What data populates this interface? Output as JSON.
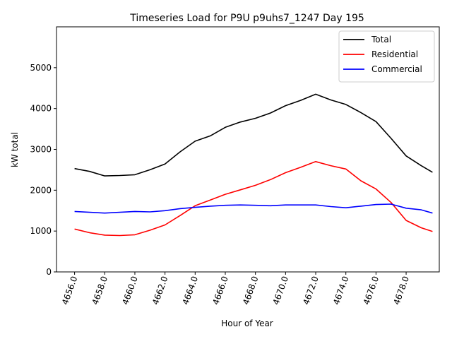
{
  "chart_data": {
    "type": "line",
    "title": "Timeseries Load for P9U p9uhs7_1247  Day 195",
    "xlabel": "Hour of Year",
    "ylabel": "kW total",
    "xlim": [
      4654.8,
      4680.2
    ],
    "ylim": [
      0,
      6000
    ],
    "x_ticks": [
      4656,
      4658,
      4660,
      4662,
      4664,
      4666,
      4668,
      4670,
      4672,
      4674,
      4676,
      4678
    ],
    "x_tick_labels": [
      "4656.0",
      "4658.0",
      "4660.0",
      "4662.0",
      "4664.0",
      "4666.0",
      "4668.0",
      "4670.0",
      "4672.0",
      "4674.0",
      "4676.0",
      "4678.0"
    ],
    "y_ticks": [
      0,
      1000,
      2000,
      3000,
      4000,
      5000
    ],
    "y_tick_labels": [
      "0",
      "1000",
      "2000",
      "3000",
      "4000",
      "5000"
    ],
    "legend_position": "top-right",
    "series": [
      {
        "name": "Total",
        "color": "#000000",
        "x": [
          4656,
          4657,
          4658,
          4659,
          4660,
          4661,
          4662,
          4663,
          4664,
          4665,
          4666,
          4667,
          4668,
          4669,
          4670,
          4671,
          4672,
          4673,
          4674,
          4675,
          4676,
          4677,
          4678,
          4679,
          4679.75
        ],
        "y": [
          2530,
          2460,
          2350,
          2360,
          2380,
          2500,
          2640,
          2940,
          3200,
          3330,
          3540,
          3670,
          3760,
          3890,
          4070,
          4200,
          4350,
          4210,
          4100,
          3900,
          3680,
          3270,
          2840,
          2600,
          2440
        ]
      },
      {
        "name": "Residential",
        "color": "#ff0000",
        "x": [
          4656,
          4657,
          4658,
          4659,
          4660,
          4661,
          4662,
          4663,
          4664,
          4665,
          4666,
          4667,
          4668,
          4669,
          4670,
          4671,
          4672,
          4673,
          4674,
          4675,
          4676,
          4677,
          4678,
          4679,
          4679.75
        ],
        "y": [
          1050,
          960,
          900,
          890,
          910,
          1020,
          1150,
          1380,
          1620,
          1760,
          1900,
          2010,
          2120,
          2260,
          2430,
          2560,
          2700,
          2600,
          2520,
          2230,
          2030,
          1700,
          1260,
          1080,
          990
        ]
      },
      {
        "name": "Commercial",
        "color": "#0000ff",
        "x": [
          4656,
          4657,
          4658,
          4659,
          4660,
          4661,
          4662,
          4663,
          4664,
          4665,
          4666,
          4667,
          4668,
          4669,
          4670,
          4671,
          4672,
          4673,
          4674,
          4675,
          4676,
          4677,
          4678,
          4679,
          4679.75
        ],
        "y": [
          1480,
          1460,
          1440,
          1460,
          1480,
          1470,
          1500,
          1550,
          1580,
          1610,
          1630,
          1640,
          1630,
          1620,
          1640,
          1640,
          1640,
          1600,
          1570,
          1610,
          1650,
          1660,
          1560,
          1520,
          1440
        ]
      }
    ]
  }
}
